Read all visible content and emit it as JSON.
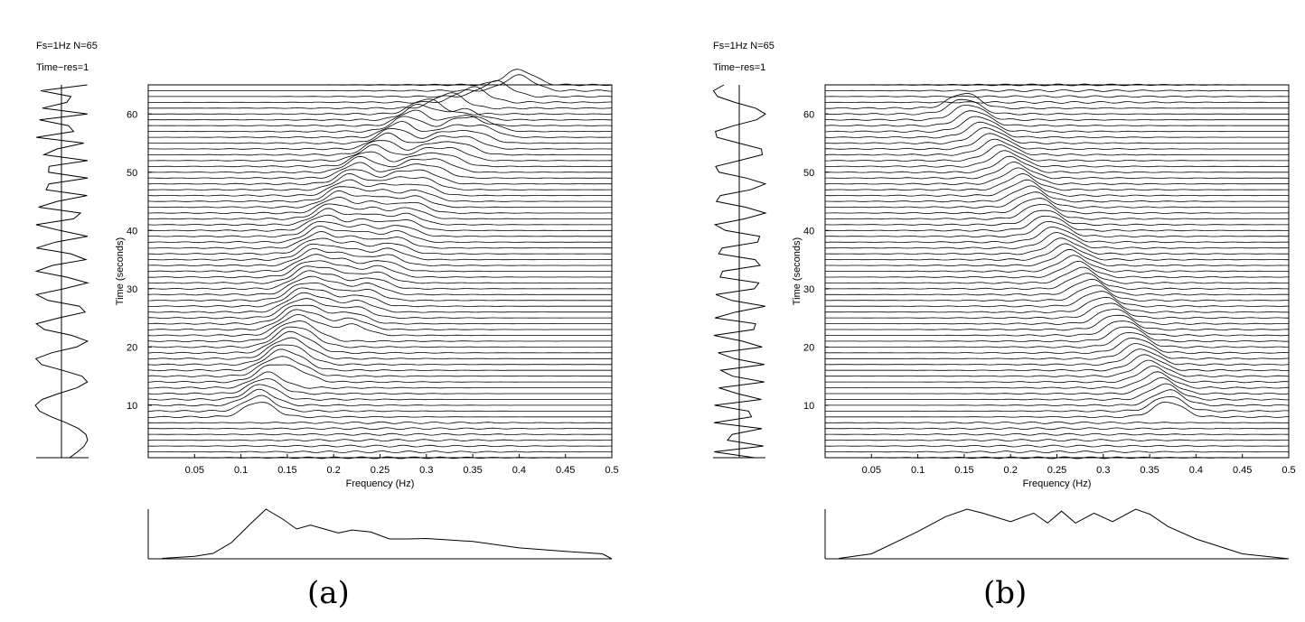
{
  "panels": [
    {
      "caption": "(a)",
      "info_line1": "Fs=1Hz  N=65",
      "info_line2": "Time−res=1",
      "chart_data": {
        "type": "waterfall",
        "title": "",
        "xlabel": "Frequency (Hz)",
        "ylabel": "Time (seconds)",
        "xlim": [
          0,
          0.5
        ],
        "ylim": [
          1,
          65
        ],
        "x_ticks": [
          0.05,
          0.1,
          0.15,
          0.2,
          0.25,
          0.3,
          0.35,
          0.4,
          0.45,
          0.5
        ],
        "y_ticks": [
          10,
          20,
          30,
          40,
          50,
          60
        ],
        "grid": false,
        "n_traces": 65,
        "ridges": [
          {
            "name": "",
            "t": [
              10,
              20,
              30,
              40,
              50,
              60,
              64
            ],
            "f": [
              0.12,
              0.15,
              0.17,
              0.19,
              0.23,
              0.3,
              0.4
            ]
          },
          {
            "name": "",
            "t": [
              16,
              30,
              45,
              58
            ],
            "f": [
              0.16,
              0.2,
              0.25,
              0.34
            ]
          },
          {
            "name": "",
            "t": [
              24,
              35,
              48,
              56
            ],
            "f": [
              0.22,
              0.26,
              0.3,
              0.36
            ]
          }
        ],
        "signal": {
          "t": [
            1,
            65
          ],
          "freq_start": 0.05,
          "freq_end": 0.42
        },
        "spectrum": {
          "f": [
            0.015,
            0.05,
            0.07,
            0.09,
            0.11,
            0.127,
            0.145,
            0.16,
            0.175,
            0.19,
            0.205,
            0.22,
            0.24,
            0.26,
            0.28,
            0.3,
            0.35,
            0.4,
            0.45,
            0.49,
            0.5
          ],
          "values": [
            0.01,
            0.05,
            0.11,
            0.33,
            0.7,
            1.0,
            0.8,
            0.6,
            0.68,
            0.6,
            0.52,
            0.58,
            0.54,
            0.4,
            0.4,
            0.41,
            0.35,
            0.22,
            0.15,
            0.1,
            0.0
          ]
        }
      }
    },
    {
      "caption": "(b)",
      "info_line1": "Fs=1Hz  N=65",
      "info_line2": "Time−res=1",
      "chart_data": {
        "type": "waterfall",
        "title": "",
        "xlabel": "Frequency (Hz)",
        "ylabel": "Time (seconds)",
        "xlim": [
          0,
          0.5
        ],
        "ylim": [
          1,
          65
        ],
        "x_ticks": [
          0.05,
          0.1,
          0.15,
          0.2,
          0.25,
          0.3,
          0.35,
          0.4,
          0.45,
          0.5
        ],
        "y_ticks": [
          10,
          20,
          30,
          40,
          50,
          60
        ],
        "grid": false,
        "n_traces": 65,
        "ridges": [
          {
            "name": "",
            "t": [
              10,
              20,
              30,
              40,
              50,
              60
            ],
            "f": [
              0.37,
              0.33,
              0.28,
              0.24,
              0.2,
              0.15
            ]
          }
        ],
        "signal": {
          "t": [
            1,
            65
          ],
          "freq_start": 0.4,
          "freq_end": 0.12
        },
        "spectrum": {
          "f": [
            0.015,
            0.05,
            0.1,
            0.13,
            0.153,
            0.17,
            0.2,
            0.225,
            0.24,
            0.255,
            0.27,
            0.29,
            0.31,
            0.335,
            0.35,
            0.37,
            0.4,
            0.45,
            0.5
          ],
          "values": [
            0.01,
            0.1,
            0.55,
            0.85,
            1.0,
            0.92,
            0.75,
            0.92,
            0.72,
            0.96,
            0.72,
            0.92,
            0.75,
            1.0,
            0.9,
            0.65,
            0.4,
            0.1,
            0.0
          ]
        }
      }
    }
  ]
}
